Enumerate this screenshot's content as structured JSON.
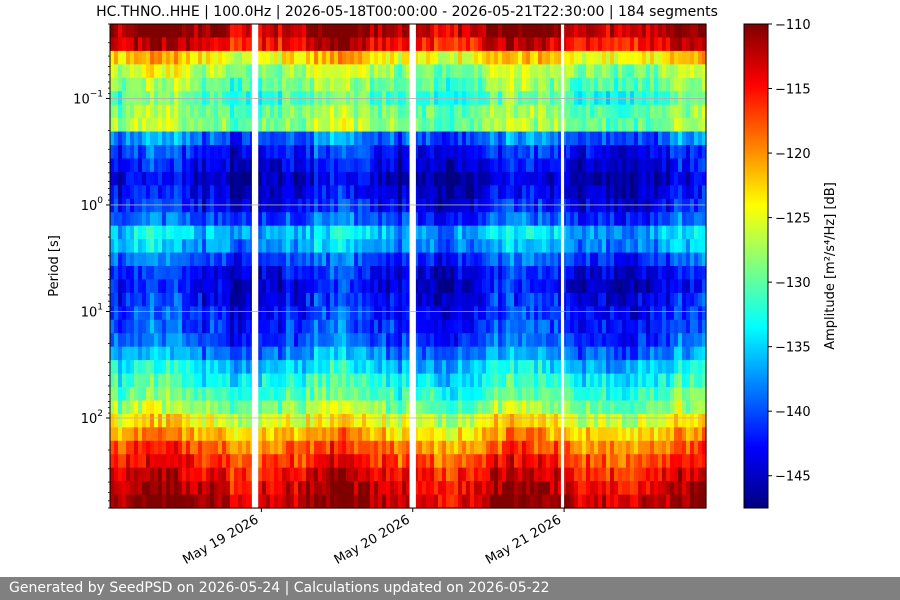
{
  "title": "HC.THNO..HHE | 100.0Hz | 2026-05-18T00:00:00 - 2026-05-21T22:30:00 | 184 segments",
  "footer": "Generated by SeedPSD on 2026-05-24 | Calculations updated on 2026-05-22",
  "chart_data": {
    "type": "heatmap",
    "title": "HC.THNO..HHE | 100.0Hz | 2026-05-18T00:00:00 - 2026-05-21T22:30:00 | 184 segments",
    "ylabel": "Period [s]",
    "y_scale": "log",
    "y_inverted": true,
    "ylim": [
      0.02,
      700
    ],
    "y_ticks": [
      {
        "value": 0.1,
        "base": "10",
        "exp": "−1"
      },
      {
        "value": 1,
        "base": "10",
        "exp": "0"
      },
      {
        "value": 10,
        "base": "10",
        "exp": "1"
      },
      {
        "value": 100,
        "base": "10",
        "exp": "2"
      }
    ],
    "xlim": [
      "2026-05-18T00:00:00",
      "2026-05-21T22:30:00"
    ],
    "x_ticks": [
      {
        "value": "2026-05-19T00:00:00",
        "label": "May 19 2026"
      },
      {
        "value": "2026-05-20T00:00:00",
        "label": "May 20 2026"
      },
      {
        "value": "2026-05-21T00:00:00",
        "label": "May 21 2026"
      }
    ],
    "gaps": [
      [
        "2026-05-18T22:30:00",
        "2026-05-18T23:30:00"
      ],
      [
        "2026-05-19T23:30:00",
        "2026-05-20T00:30:00"
      ],
      [
        "2026-05-20T23:30:00",
        "2026-05-21T00:00:00"
      ]
    ],
    "grid": true,
    "colorbar": {
      "label": "Amplitude [m²/s⁴/Hz] [dB]",
      "colormap": "jet",
      "vmin": -147.5,
      "vmax": -110,
      "ticks": [
        -110,
        -115,
        -120,
        -125,
        -130,
        -135,
        -140,
        -145
      ],
      "tick_labels": [
        "−110",
        "−115",
        "−120",
        "−125",
        "−130",
        "−135",
        "−140",
        "−145"
      ]
    },
    "amplitude_profile": [
      {
        "period": 0.02,
        "db": -110.5
      },
      {
        "period": 0.03,
        "db": -113
      },
      {
        "period": 0.045,
        "db": -126
      },
      {
        "period": 0.07,
        "db": -129
      },
      {
        "period": 0.1,
        "db": -131
      },
      {
        "period": 0.17,
        "db": -127
      },
      {
        "period": 0.25,
        "db": -141
      },
      {
        "period": 0.6,
        "db": -145
      },
      {
        "period": 1.2,
        "db": -142
      },
      {
        "period": 2,
        "db": -134
      },
      {
        "period": 3,
        "db": -140
      },
      {
        "period": 5,
        "db": -144
      },
      {
        "period": 10,
        "db": -142
      },
      {
        "period": 20,
        "db": -140
      },
      {
        "period": 40,
        "db": -133
      },
      {
        "period": 70,
        "db": -130
      },
      {
        "period": 120,
        "db": -123
      },
      {
        "period": 200,
        "db": -118
      },
      {
        "period": 350,
        "db": -114
      },
      {
        "period": 700,
        "db": -111
      }
    ]
  }
}
